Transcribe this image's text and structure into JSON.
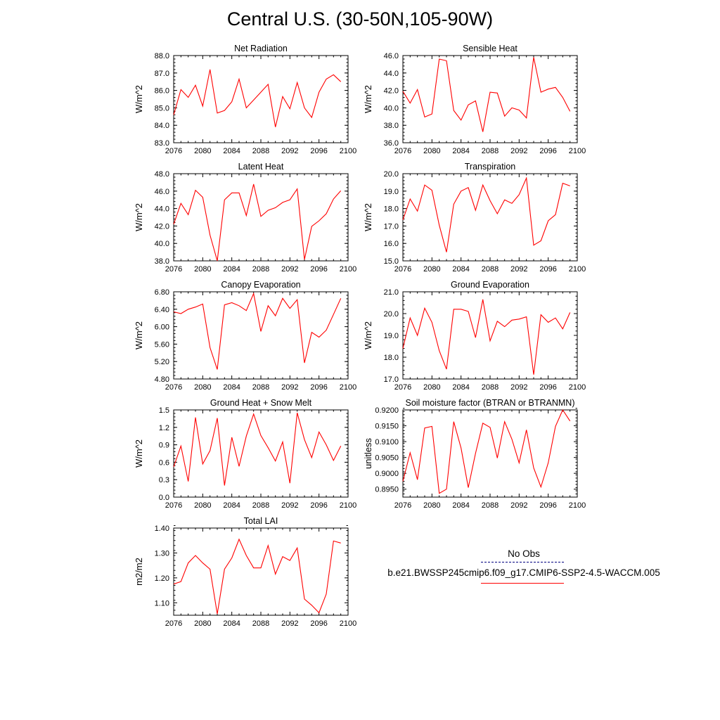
{
  "title": "Central U.S. (30-50N,105-90W)",
  "colors": {
    "model": "#ff0000",
    "obs": "#000080"
  },
  "legend": {
    "obs_label": "No Obs",
    "model_label": "b.e21.BWSSP245cmip6.f09_g17.CMIP6-SSP2-4.5-WACCM.005"
  },
  "chart_data": [
    {
      "type": "line",
      "title": "Net Radiation",
      "ylabel": "W/m^2",
      "x": [
        2076,
        2077,
        2078,
        2079,
        2080,
        2081,
        2082,
        2083,
        2084,
        2085,
        2086,
        2087,
        2088,
        2089,
        2090,
        2091,
        2092,
        2093,
        2094,
        2095,
        2096,
        2097,
        2098,
        2099
      ],
      "xlim": [
        2076,
        2100
      ],
      "xticks": [
        2076,
        2080,
        2084,
        2088,
        2092,
        2096,
        2100
      ],
      "ylim": [
        83.0,
        88.0
      ],
      "yticks": [
        "83.0",
        "84.0",
        "85.0",
        "86.0",
        "87.0",
        "88.0"
      ],
      "series": [
        {
          "values": [
            84.6,
            86.05,
            85.6,
            86.3,
            85.1,
            87.2,
            84.7,
            84.85,
            85.35,
            86.65,
            85.0,
            85.45,
            85.9,
            86.35,
            83.9,
            85.65,
            84.95,
            86.45,
            85.0,
            84.45,
            85.9,
            86.65,
            86.9,
            86.5
          ]
        }
      ]
    },
    {
      "type": "line",
      "title": "Sensible Heat",
      "ylabel": "W/m^2",
      "x": [
        2076,
        2077,
        2078,
        2079,
        2080,
        2081,
        2082,
        2083,
        2084,
        2085,
        2086,
        2087,
        2088,
        2089,
        2090,
        2091,
        2092,
        2093,
        2094,
        2095,
        2096,
        2097,
        2098,
        2099
      ],
      "xlim": [
        2076,
        2100
      ],
      "xticks": [
        2076,
        2080,
        2084,
        2088,
        2092,
        2096,
        2100
      ],
      "ylim": [
        36.0,
        46.0
      ],
      "yticks": [
        "36.0",
        "38.0",
        "40.0",
        "42.0",
        "44.0",
        "46.0"
      ],
      "series": [
        {
          "values": [
            41.9,
            40.55,
            42.1,
            38.95,
            39.3,
            45.6,
            45.4,
            39.7,
            38.6,
            40.35,
            40.8,
            37.25,
            41.8,
            41.7,
            39.05,
            40.0,
            39.75,
            38.85,
            45.8,
            41.8,
            42.15,
            42.35,
            41.2,
            39.6
          ]
        }
      ]
    },
    {
      "type": "line",
      "title": "Latent Heat",
      "ylabel": "W/m^2",
      "x": [
        2076,
        2077,
        2078,
        2079,
        2080,
        2081,
        2082,
        2083,
        2084,
        2085,
        2086,
        2087,
        2088,
        2089,
        2090,
        2091,
        2092,
        2093,
        2094,
        2095,
        2096,
        2097,
        2098,
        2099
      ],
      "xlim": [
        2076,
        2100
      ],
      "xticks": [
        2076,
        2080,
        2084,
        2088,
        2092,
        2096,
        2100
      ],
      "ylim": [
        38.0,
        48.0
      ],
      "yticks": [
        "38.0",
        "40.0",
        "42.0",
        "44.0",
        "46.0",
        "48.0"
      ],
      "series": [
        {
          "values": [
            42.2,
            44.6,
            43.3,
            46.1,
            45.3,
            40.95,
            38.0,
            45.0,
            45.8,
            45.8,
            43.2,
            46.8,
            43.1,
            43.8,
            44.1,
            44.7,
            45.0,
            46.25,
            38.15,
            41.95,
            42.6,
            43.4,
            45.1,
            46.05
          ]
        }
      ]
    },
    {
      "type": "line",
      "title": "Transpiration",
      "ylabel": "W/m^2",
      "x": [
        2076,
        2077,
        2078,
        2079,
        2080,
        2081,
        2082,
        2083,
        2084,
        2085,
        2086,
        2087,
        2088,
        2089,
        2090,
        2091,
        2092,
        2093,
        2094,
        2095,
        2096,
        2097,
        2098,
        2099
      ],
      "xlim": [
        2076,
        2100
      ],
      "xticks": [
        2076,
        2080,
        2084,
        2088,
        2092,
        2096,
        2100
      ],
      "ylim": [
        15.0,
        20.0
      ],
      "yticks": [
        "15.0",
        "16.0",
        "17.0",
        "18.0",
        "19.0",
        "20.0"
      ],
      "series": [
        {
          "values": [
            17.35,
            18.55,
            17.85,
            19.35,
            19.05,
            17.05,
            15.5,
            18.25,
            19.0,
            19.2,
            17.9,
            19.35,
            18.45,
            17.7,
            18.5,
            18.3,
            18.8,
            19.75,
            15.9,
            16.15,
            17.3,
            17.65,
            19.45,
            19.3
          ]
        }
      ]
    },
    {
      "type": "line",
      "title": "Canopy Evaporation",
      "ylabel": "W/m^2",
      "x": [
        2076,
        2077,
        2078,
        2079,
        2080,
        2081,
        2082,
        2083,
        2084,
        2085,
        2086,
        2087,
        2088,
        2089,
        2090,
        2091,
        2092,
        2093,
        2094,
        2095,
        2096,
        2097,
        2098,
        2099
      ],
      "xlim": [
        2076,
        2100
      ],
      "xticks": [
        2076,
        2080,
        2084,
        2088,
        2092,
        2096,
        2100
      ],
      "ylim": [
        4.8,
        6.8
      ],
      "yticks": [
        "4.80",
        "5.20",
        "5.60",
        "6.00",
        "6.40",
        "6.80"
      ],
      "series": [
        {
          "values": [
            6.34,
            6.3,
            6.4,
            6.45,
            6.52,
            5.52,
            5.02,
            6.5,
            6.55,
            6.48,
            6.37,
            6.76,
            5.89,
            6.48,
            6.25,
            6.65,
            6.42,
            6.62,
            5.17,
            5.87,
            5.76,
            5.92,
            6.28,
            6.65
          ]
        }
      ]
    },
    {
      "type": "line",
      "title": "Ground Evaporation",
      "ylabel": "W/m^2",
      "x": [
        2076,
        2077,
        2078,
        2079,
        2080,
        2081,
        2082,
        2083,
        2084,
        2085,
        2086,
        2087,
        2088,
        2089,
        2090,
        2091,
        2092,
        2093,
        2094,
        2095,
        2096,
        2097,
        2098,
        2099
      ],
      "xlim": [
        2076,
        2100
      ],
      "xticks": [
        2076,
        2080,
        2084,
        2088,
        2092,
        2096,
        2100
      ],
      "ylim": [
        17.0,
        21.0
      ],
      "yticks": [
        "17.0",
        "18.0",
        "19.0",
        "20.0",
        "21.0"
      ],
      "series": [
        {
          "values": [
            18.4,
            19.8,
            19.0,
            20.25,
            19.6,
            18.3,
            17.45,
            20.2,
            20.2,
            20.1,
            18.9,
            20.65,
            18.75,
            19.65,
            19.4,
            19.7,
            19.75,
            19.85,
            17.2,
            19.95,
            19.6,
            19.8,
            19.3,
            20.05
          ]
        }
      ]
    },
    {
      "type": "line",
      "title": "Ground Heat + Snow Melt",
      "ylabel": "W/m^2",
      "x": [
        2076,
        2077,
        2078,
        2079,
        2080,
        2081,
        2082,
        2083,
        2084,
        2085,
        2086,
        2087,
        2088,
        2089,
        2090,
        2091,
        2092,
        2093,
        2094,
        2095,
        2096,
        2097,
        2098,
        2099
      ],
      "xlim": [
        2076,
        2100
      ],
      "xticks": [
        2076,
        2080,
        2084,
        2088,
        2092,
        2096,
        2100
      ],
      "ylim": [
        0.0,
        1.5
      ],
      "yticks": [
        "0.0",
        "0.3",
        "0.6",
        "0.9",
        "1.2",
        "1.5"
      ],
      "series": [
        {
          "values": [
            0.52,
            0.88,
            0.27,
            1.37,
            0.57,
            0.8,
            1.36,
            0.2,
            1.03,
            0.53,
            1.05,
            1.43,
            1.06,
            0.85,
            0.62,
            0.95,
            0.24,
            1.45,
            0.99,
            0.68,
            1.12,
            0.9,
            0.63,
            0.88
          ]
        }
      ]
    },
    {
      "type": "line",
      "title": "Soil moisture factor (BTRAN or BTRANMN)",
      "ylabel": "unitless",
      "x": [
        2076,
        2077,
        2078,
        2079,
        2080,
        2081,
        2082,
        2083,
        2084,
        2085,
        2086,
        2087,
        2088,
        2089,
        2090,
        2091,
        2092,
        2093,
        2094,
        2095,
        2096,
        2097,
        2098,
        2099
      ],
      "xlim": [
        2076,
        2100
      ],
      "xticks": [
        2076,
        2080,
        2084,
        2088,
        2092,
        2096,
        2100
      ],
      "ylim": [
        0.8925,
        0.92
      ],
      "yticks": [
        "0.8950",
        "0.9000",
        "0.9050",
        "0.9100",
        "0.9150",
        "0.9200"
      ],
      "series": [
        {
          "values": [
            0.8975,
            0.9065,
            0.898,
            0.9143,
            0.9148,
            0.8937,
            0.895,
            0.9163,
            0.908,
            0.8955,
            0.9063,
            0.9158,
            0.9145,
            0.9048,
            0.9163,
            0.9108,
            0.9033,
            0.9137,
            0.9017,
            0.8957,
            0.9033,
            0.9148,
            0.92,
            0.9165
          ]
        }
      ]
    },
    {
      "type": "line",
      "title": "Total LAI",
      "ylabel": "m2/m2",
      "x": [
        2076,
        2077,
        2078,
        2079,
        2080,
        2081,
        2082,
        2083,
        2084,
        2085,
        2086,
        2087,
        2088,
        2089,
        2090,
        2091,
        2092,
        2093,
        2094,
        2095,
        2096,
        2097,
        2098,
        2099
      ],
      "xlim": [
        2076,
        2100
      ],
      "xticks": [
        2076,
        2080,
        2084,
        2088,
        2092,
        2096,
        2100
      ],
      "ylim": [
        1.05,
        1.4
      ],
      "yticks": [
        "1.10",
        "1.20",
        "1.30",
        "1.40"
      ],
      "series": [
        {
          "values": [
            1.175,
            1.185,
            1.26,
            1.29,
            1.26,
            1.235,
            1.055,
            1.235,
            1.28,
            1.355,
            1.29,
            1.24,
            1.24,
            1.33,
            1.215,
            1.285,
            1.27,
            1.32,
            1.115,
            1.09,
            1.06,
            1.135,
            1.348,
            1.34
          ]
        }
      ]
    }
  ]
}
